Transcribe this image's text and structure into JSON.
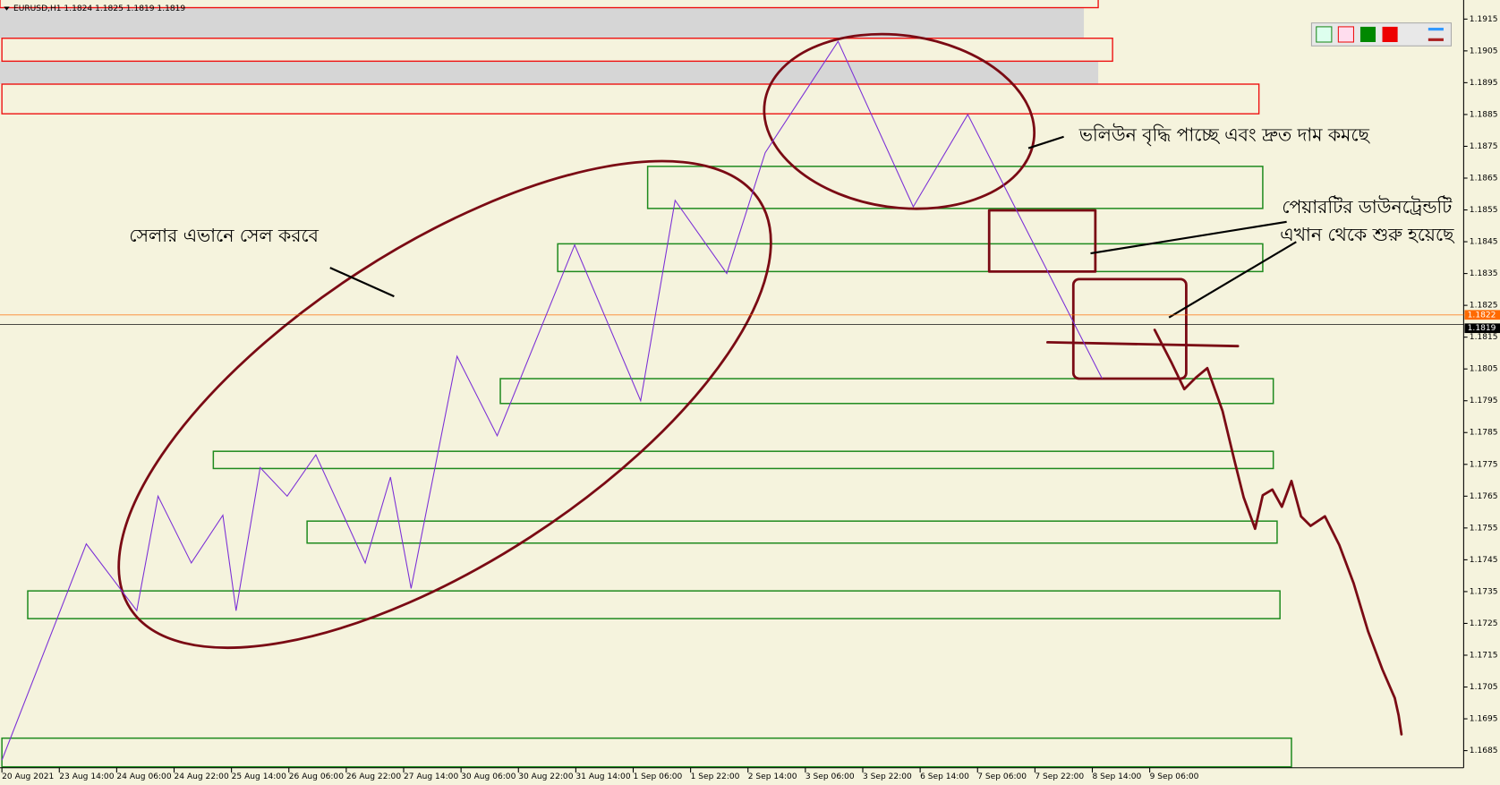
{
  "header": {
    "symbol": "EURUSD,H1  1.1824 1.1825 1.1819 1.1819"
  },
  "chart_data": {
    "type": "line",
    "categories": [
      "20 Aug 2021",
      "23 Aug 14:00",
      "24 Aug 06:00",
      "24 Aug 22:00",
      "25 Aug 14:00",
      "26 Aug 06:00",
      "26 Aug 22:00",
      "27 Aug 14:00",
      "30 Aug 06:00",
      "30 Aug 22:00",
      "31 Aug 14:00",
      "1 Sep 06:00",
      "1 Sep 22:00",
      "2 Sep 14:00",
      "3 Sep 06:00",
      "3 Sep 22:00",
      "6 Sep 14:00",
      "7 Sep 06:00",
      "7 Sep 22:00",
      "8 Sep 14:00",
      "9 Sep 06:00"
    ],
    "xlim": [
      0,
      25.47
    ],
    "ylim": [
      1.1679,
      1.1921
    ],
    "yticks": [
      1.1915,
      1.1905,
      1.1895,
      1.1885,
      1.1875,
      1.1865,
      1.1855,
      1.1845,
      1.1835,
      1.1825,
      1.1815,
      1.1805,
      1.1795,
      1.1785,
      1.1775,
      1.1765,
      1.1755,
      1.1745,
      1.1735,
      1.1725,
      1.1715,
      1.1705,
      1.1695,
      1.1685
    ],
    "series": [
      {
        "color": "#7b2fd6",
        "x": [
          0,
          1.47,
          2.35,
          2.72,
          3.3,
          3.85,
          4.08,
          4.5,
          4.97,
          5.47,
          6.33,
          6.77,
          7.13,
          7.93,
          8.63,
          9.98,
          11.13,
          11.73,
          12.63,
          13.3,
          14.57,
          15.88,
          16.83,
          19.17
        ],
        "values": [
          1.1682,
          1.175,
          1.1729,
          1.1765,
          1.1744,
          1.1759,
          1.1729,
          1.1774,
          1.1765,
          1.1778,
          1.1744,
          1.1771,
          1.1736,
          1.1809,
          1.1784,
          1.1844,
          1.1795,
          1.1858,
          1.1835,
          1.1873,
          1.1908,
          1.1856,
          1.1885,
          1.1802
        ]
      }
    ],
    "price_lines": [
      {
        "value": 1.1822,
        "color": "#ff6a00"
      },
      {
        "value": 1.1819,
        "color": "#000000"
      }
    ],
    "annotations": [
      "ভলিউন বৃদ্ধি পাচ্ছে এবং দ্রুত দাম কমছে",
      "পেয়ারটির ডাউনট্রেন্ডটি",
      "এখান থেকে শুরু হয়েছে",
      "সেলার এভানে সেল করবে"
    ]
  }
}
